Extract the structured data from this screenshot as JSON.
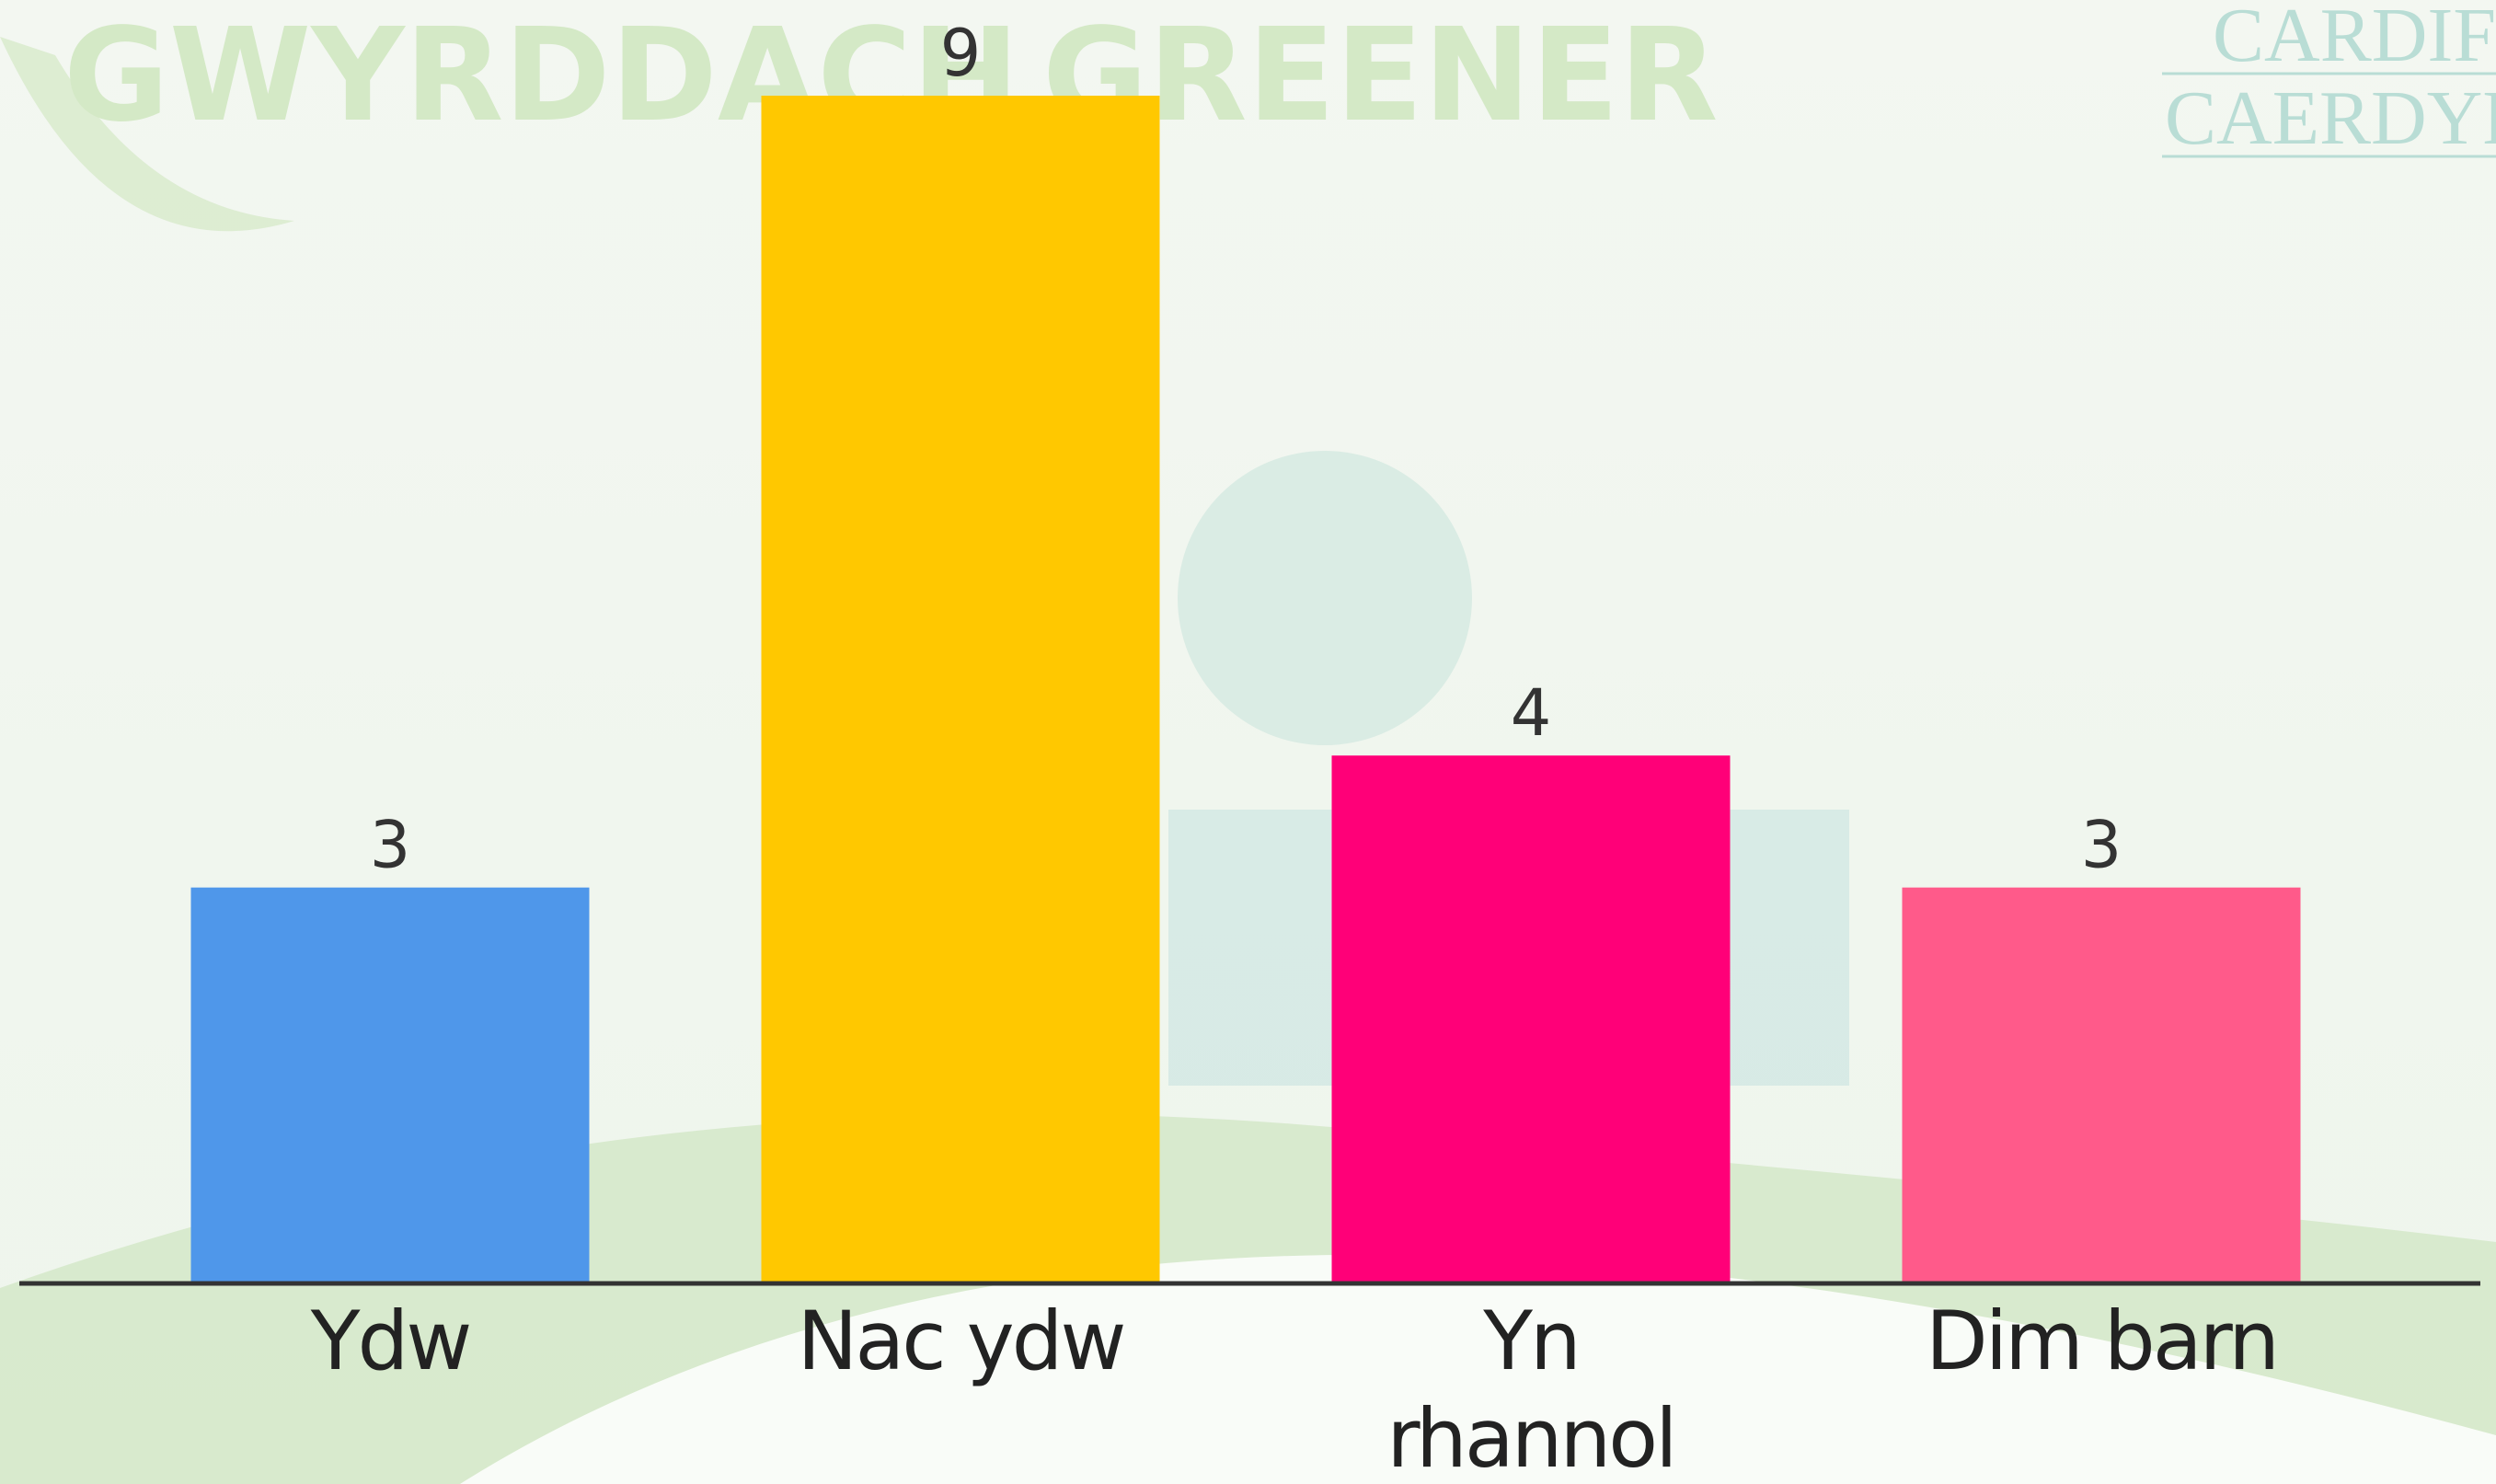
{
  "background_text": [
    "GWYRDDACH",
    "GREENER",
    "CARDIFF",
    "CAERDYDD"
  ],
  "chart_data": {
    "type": "bar",
    "categories": [
      "Ydw",
      "Nac ydw",
      "Yn rhannol",
      "Dim barn"
    ],
    "values": [
      3,
      9,
      4,
      3
    ],
    "colors": [
      "#4f97ea",
      "#ffc800",
      "#ff0078",
      "#ff5a8a"
    ]
  }
}
